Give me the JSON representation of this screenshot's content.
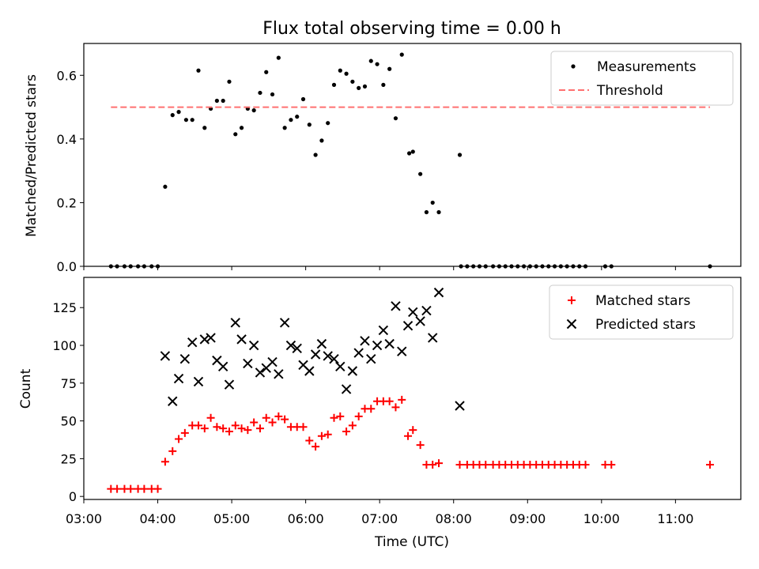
{
  "chart_data": [
    {
      "type": "scatter",
      "title": "Flux total observing time = 0.00 h",
      "xlabel": "",
      "ylabel": "Matched/Predicted stars",
      "xlim": [
        "03:00",
        "11:53"
      ],
      "ylim": [
        0,
        0.7
      ],
      "yticks": [
        0.0,
        0.2,
        0.4,
        0.6
      ],
      "yticklabels": [
        "0.0",
        "0.2",
        "0.4",
        "0.6"
      ],
      "legend_position": "top-right",
      "series": [
        {
          "name": "Measurements",
          "marker": "dot",
          "color": "#000000",
          "points": [
            [
              "03:22",
              0
            ],
            [
              "03:27",
              0
            ],
            [
              "03:33",
              0
            ],
            [
              "03:38",
              0
            ],
            [
              "03:44",
              0
            ],
            [
              "03:49",
              0
            ],
            [
              "03:55",
              0
            ],
            [
              "04:00",
              0
            ],
            [
              "04:06",
              0.25
            ],
            [
              "04:12",
              0.475
            ],
            [
              "04:17",
              0.485
            ],
            [
              "04:23",
              0.46
            ],
            [
              "04:28",
              0.46
            ],
            [
              "04:33",
              0.615
            ],
            [
              "04:38",
              0.435
            ],
            [
              "04:43",
              0.495
            ],
            [
              "04:48",
              0.52
            ],
            [
              "04:53",
              0.52
            ],
            [
              "04:58",
              0.58
            ],
            [
              "05:03",
              0.415
            ],
            [
              "05:08",
              0.435
            ],
            [
              "05:13",
              0.495
            ],
            [
              "05:18",
              0.49
            ],
            [
              "05:23",
              0.545
            ],
            [
              "05:28",
              0.61
            ],
            [
              "05:33",
              0.54
            ],
            [
              "05:38",
              0.655
            ],
            [
              "05:43",
              0.435
            ],
            [
              "05:48",
              0.46
            ],
            [
              "05:53",
              0.47
            ],
            [
              "05:58",
              0.525
            ],
            [
              "06:03",
              0.445
            ],
            [
              "06:08",
              0.35
            ],
            [
              "06:13",
              0.395
            ],
            [
              "06:18",
              0.45
            ],
            [
              "06:23",
              0.57
            ],
            [
              "06:28",
              0.615
            ],
            [
              "06:33",
              0.605
            ],
            [
              "06:38",
              0.58
            ],
            [
              "06:43",
              0.56
            ],
            [
              "06:48",
              0.565
            ],
            [
              "06:53",
              0.645
            ],
            [
              "06:58",
              0.635
            ],
            [
              "07:03",
              0.57
            ],
            [
              "07:08",
              0.62
            ],
            [
              "07:13",
              0.465
            ],
            [
              "07:18",
              0.665
            ],
            [
              "07:24",
              0.355
            ],
            [
              "07:27",
              0.36
            ],
            [
              "07:33",
              0.29
            ],
            [
              "07:38",
              0.17
            ],
            [
              "07:43",
              0.2
            ],
            [
              "07:48",
              0.17
            ],
            [
              "08:05",
              0.35
            ],
            [
              "08:06",
              0
            ],
            [
              "08:11",
              0
            ],
            [
              "08:16",
              0
            ],
            [
              "08:21",
              0
            ],
            [
              "08:26",
              0
            ],
            [
              "08:32",
              0
            ],
            [
              "08:37",
              0
            ],
            [
              "08:42",
              0
            ],
            [
              "08:47",
              0
            ],
            [
              "08:52",
              0
            ],
            [
              "08:57",
              0
            ],
            [
              "09:02",
              0
            ],
            [
              "09:07",
              0
            ],
            [
              "09:12",
              0
            ],
            [
              "09:17",
              0
            ],
            [
              "09:22",
              0
            ],
            [
              "09:27",
              0
            ],
            [
              "09:32",
              0
            ],
            [
              "09:37",
              0
            ],
            [
              "09:42",
              0
            ],
            [
              "09:47",
              0
            ],
            [
              "10:03",
              0
            ],
            [
              "10:08",
              0
            ],
            [
              "11:28",
              0
            ]
          ]
        },
        {
          "name": "Threshold",
          "style": "dashed",
          "color": "#ff7070",
          "points": [
            [
              "03:22",
              0.5
            ],
            [
              "11:28",
              0.5
            ]
          ]
        }
      ]
    },
    {
      "type": "scatter",
      "title": "",
      "xlabel": "Time (UTC)",
      "ylabel": "Count",
      "xlim": [
        "03:00",
        "11:53"
      ],
      "ylim": [
        -2,
        145
      ],
      "yticks": [
        0,
        25,
        50,
        75,
        100,
        125
      ],
      "yticklabels": [
        "0",
        "25",
        "50",
        "75",
        "100",
        "125"
      ],
      "xticks": [
        "03:00",
        "04:00",
        "05:00",
        "06:00",
        "07:00",
        "08:00",
        "09:00",
        "10:00",
        "11:00"
      ],
      "xticklabels": [
        "03:00",
        "04:00",
        "05:00",
        "06:00",
        "07:00",
        "08:00",
        "09:00",
        "10:00",
        "11:00"
      ],
      "legend_position": "top-right",
      "series": [
        {
          "name": "Matched stars",
          "marker": "plus",
          "color": "#ff0000",
          "points": [
            [
              "03:22",
              5
            ],
            [
              "03:27",
              5
            ],
            [
              "03:33",
              5
            ],
            [
              "03:38",
              5
            ],
            [
              "03:44",
              5
            ],
            [
              "03:49",
              5
            ],
            [
              "03:55",
              5
            ],
            [
              "04:00",
              5
            ],
            [
              "04:06",
              23
            ],
            [
              "04:12",
              30
            ],
            [
              "04:17",
              38
            ],
            [
              "04:22",
              42
            ],
            [
              "04:28",
              47
            ],
            [
              "04:33",
              47
            ],
            [
              "04:38",
              45
            ],
            [
              "04:43",
              52
            ],
            [
              "04:48",
              46
            ],
            [
              "04:53",
              45
            ],
            [
              "04:58",
              43
            ],
            [
              "05:03",
              47
            ],
            [
              "05:08",
              45
            ],
            [
              "05:13",
              44
            ],
            [
              "05:18",
              49
            ],
            [
              "05:23",
              45
            ],
            [
              "05:28",
              52
            ],
            [
              "05:33",
              49
            ],
            [
              "05:38",
              53
            ],
            [
              "05:43",
              51
            ],
            [
              "05:48",
              46
            ],
            [
              "05:53",
              46
            ],
            [
              "05:58",
              46
            ],
            [
              "06:03",
              37
            ],
            [
              "06:08",
              33
            ],
            [
              "06:13",
              40
            ],
            [
              "06:18",
              41
            ],
            [
              "06:23",
              52
            ],
            [
              "06:28",
              53
            ],
            [
              "06:33",
              43
            ],
            [
              "06:38",
              47
            ],
            [
              "06:43",
              53
            ],
            [
              "06:48",
              58
            ],
            [
              "06:53",
              58
            ],
            [
              "06:58",
              63
            ],
            [
              "07:03",
              63
            ],
            [
              "07:08",
              63
            ],
            [
              "07:13",
              59
            ],
            [
              "07:18",
              64
            ],
            [
              "07:23",
              40
            ],
            [
              "07:27",
              44
            ],
            [
              "07:33",
              34
            ],
            [
              "07:38",
              21
            ],
            [
              "07:43",
              21
            ],
            [
              "07:48",
              22
            ],
            [
              "08:05",
              21
            ],
            [
              "08:11",
              21
            ],
            [
              "08:16",
              21
            ],
            [
              "08:21",
              21
            ],
            [
              "08:26",
              21
            ],
            [
              "08:32",
              21
            ],
            [
              "08:37",
              21
            ],
            [
              "08:42",
              21
            ],
            [
              "08:47",
              21
            ],
            [
              "08:52",
              21
            ],
            [
              "08:57",
              21
            ],
            [
              "09:02",
              21
            ],
            [
              "09:07",
              21
            ],
            [
              "09:12",
              21
            ],
            [
              "09:17",
              21
            ],
            [
              "09:22",
              21
            ],
            [
              "09:27",
              21
            ],
            [
              "09:32",
              21
            ],
            [
              "09:37",
              21
            ],
            [
              "09:42",
              21
            ],
            [
              "09:47",
              21
            ],
            [
              "10:03",
              21
            ],
            [
              "10:08",
              21
            ],
            [
              "11:28",
              21
            ]
          ]
        },
        {
          "name": "Predicted stars",
          "marker": "x",
          "color": "#000000",
          "points": [
            [
              "04:06",
              93
            ],
            [
              "04:12",
              63
            ],
            [
              "04:17",
              78
            ],
            [
              "04:22",
              91
            ],
            [
              "04:28",
              102
            ],
            [
              "04:33",
              76
            ],
            [
              "04:38",
              104
            ],
            [
              "04:43",
              105
            ],
            [
              "04:48",
              90
            ],
            [
              "04:53",
              86
            ],
            [
              "04:58",
              74
            ],
            [
              "05:03",
              115
            ],
            [
              "05:08",
              104
            ],
            [
              "05:13",
              88
            ],
            [
              "05:18",
              100
            ],
            [
              "05:23",
              82
            ],
            [
              "05:28",
              85
            ],
            [
              "05:33",
              89
            ],
            [
              "05:38",
              81
            ],
            [
              "05:43",
              115
            ],
            [
              "05:48",
              100
            ],
            [
              "05:53",
              98
            ],
            [
              "05:58",
              87
            ],
            [
              "06:03",
              83
            ],
            [
              "06:08",
              94
            ],
            [
              "06:13",
              101
            ],
            [
              "06:18",
              93
            ],
            [
              "06:23",
              91
            ],
            [
              "06:28",
              86
            ],
            [
              "06:33",
              71
            ],
            [
              "06:38",
              83
            ],
            [
              "06:43",
              95
            ],
            [
              "06:48",
              103
            ],
            [
              "06:53",
              91
            ],
            [
              "06:58",
              100
            ],
            [
              "07:03",
              110
            ],
            [
              "07:08",
              101
            ],
            [
              "07:13",
              126
            ],
            [
              "07:18",
              96
            ],
            [
              "07:23",
              113
            ],
            [
              "07:27",
              122
            ],
            [
              "07:33",
              116
            ],
            [
              "07:38",
              123
            ],
            [
              "07:43",
              105
            ],
            [
              "07:48",
              135
            ],
            [
              "08:05",
              60
            ]
          ]
        }
      ]
    }
  ]
}
